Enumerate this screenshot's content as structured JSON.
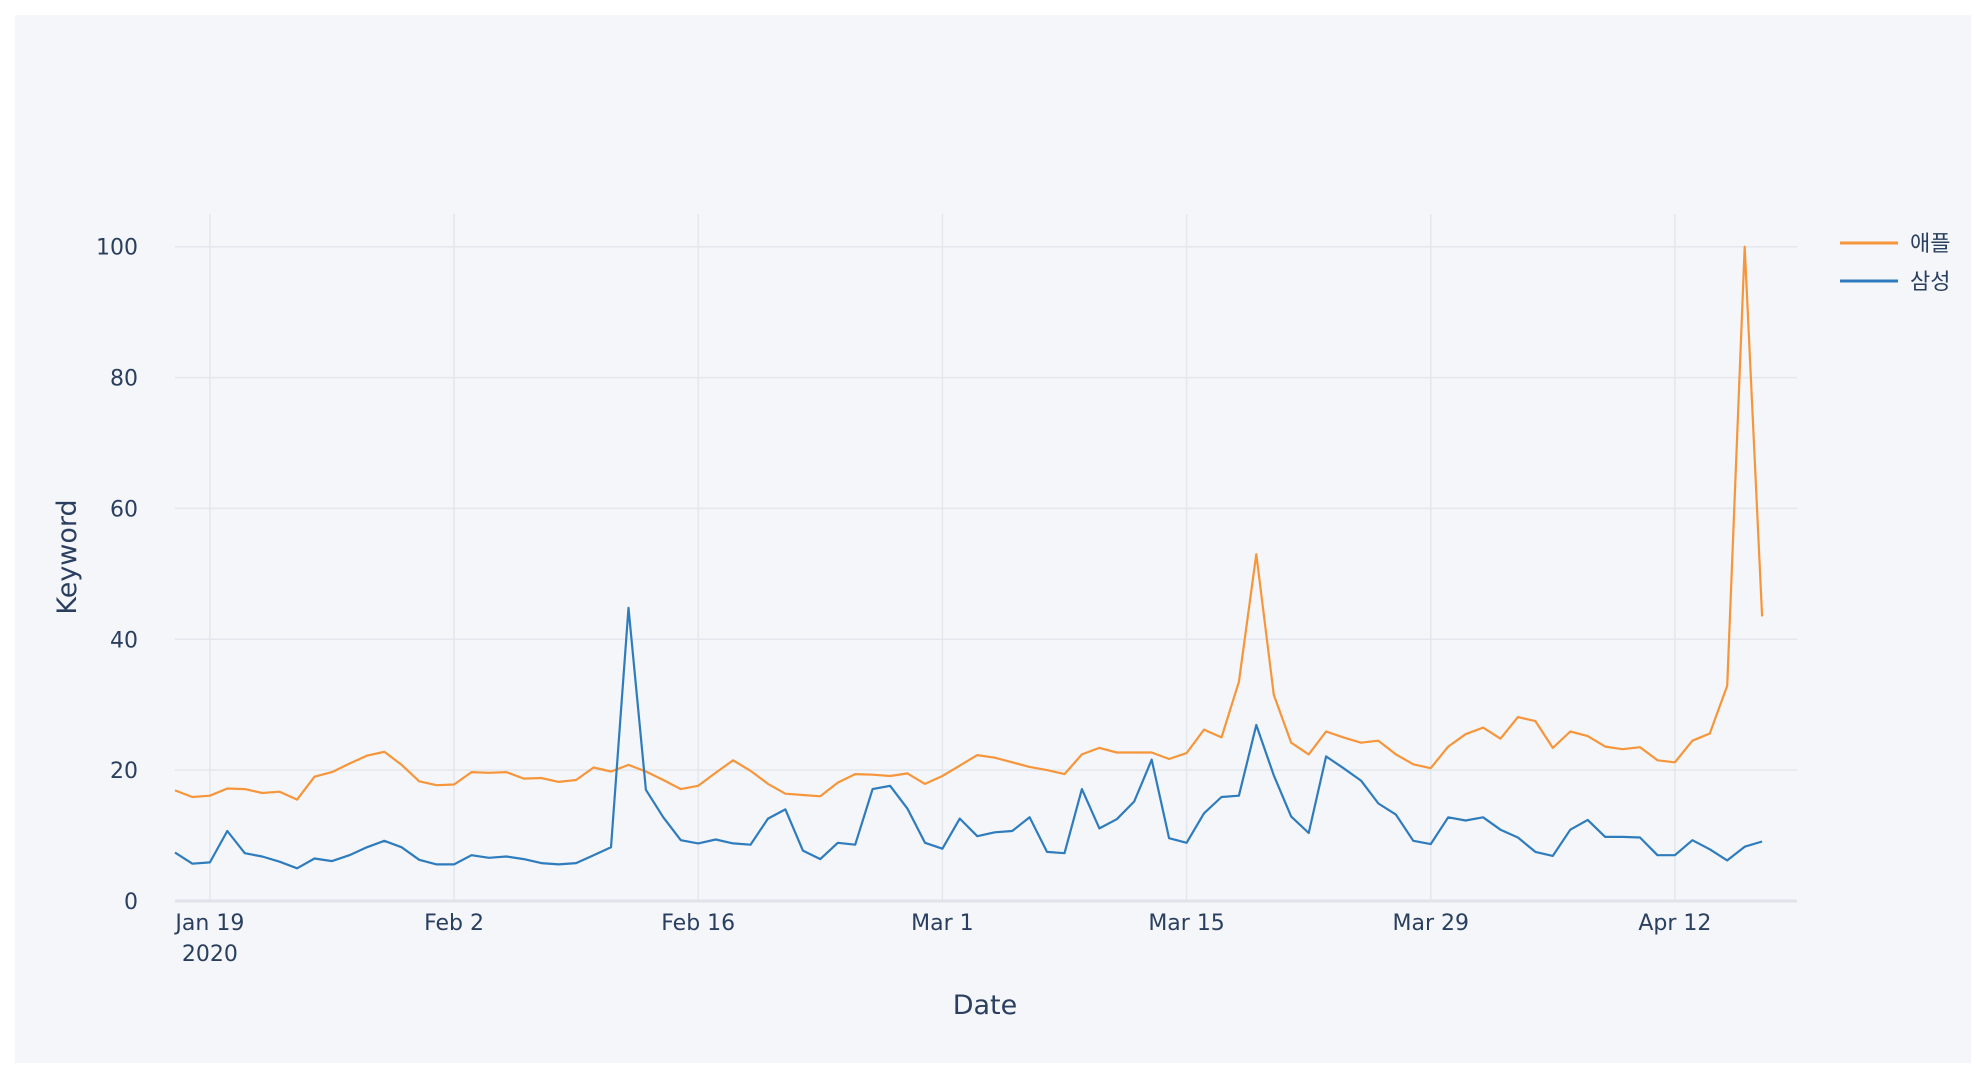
{
  "chart_data": {
    "type": "line",
    "title": "",
    "xlabel": "Date",
    "ylabel": "Keyword",
    "x_start": "2020-01-17",
    "x_end": "2020-04-19",
    "x_range": [
      "2020-01-17",
      "2020-04-19"
    ],
    "xticks": [
      {
        "date": "2020-01-19",
        "label": "Jan 19",
        "sublabel": "2020"
      },
      {
        "date": "2020-02-02",
        "label": "Feb 2",
        "sublabel": ""
      },
      {
        "date": "2020-02-16",
        "label": "Feb 16",
        "sublabel": ""
      },
      {
        "date": "2020-03-01",
        "label": "Mar 1",
        "sublabel": ""
      },
      {
        "date": "2020-03-15",
        "label": "Mar 15",
        "sublabel": ""
      },
      {
        "date": "2020-03-29",
        "label": "Mar 29",
        "sublabel": ""
      },
      {
        "date": "2020-04-12",
        "label": "Apr 12",
        "sublabel": ""
      }
    ],
    "ylim": [
      0,
      105
    ],
    "yticks": [
      0,
      20,
      40,
      60,
      80,
      100
    ],
    "grid": true,
    "legend_position": "top-right",
    "colors": {
      "paper": "#f4f6f9",
      "grid": "#e3e7ee",
      "zeroline": "#dfe3ea",
      "apple": "#f7953a",
      "samsung": "#2e7cbd"
    },
    "series": [
      {
        "name": "애플",
        "color": "#f7953a",
        "values": [
          16.9,
          15.9,
          16.1,
          17.2,
          17.1,
          16.5,
          16.7,
          15.5,
          19.0,
          19.7,
          21.0,
          22.2,
          22.8,
          20.8,
          18.3,
          17.7,
          17.8,
          19.7,
          19.6,
          19.7,
          18.7,
          18.8,
          18.2,
          18.5,
          20.4,
          19.8,
          20.8,
          19.8,
          18.5,
          17.1,
          17.6,
          19.6,
          21.5,
          19.9,
          17.9,
          16.4,
          16.2,
          16.0,
          18.1,
          19.4,
          19.3,
          19.1,
          19.5,
          17.9,
          19.1,
          20.7,
          22.3,
          21.9,
          21.2,
          20.5,
          20.0,
          19.4,
          22.4,
          23.4,
          22.7,
          22.7,
          22.7,
          21.7,
          22.6,
          26.2,
          25.0,
          33.5,
          53.0,
          31.5,
          24.2,
          22.4,
          25.9,
          25.0,
          24.2,
          24.5,
          22.4,
          20.9,
          20.3,
          23.6,
          25.5,
          26.5,
          24.8,
          28.1,
          27.5,
          23.4,
          25.9,
          25.2,
          23.6,
          23.2,
          23.5,
          21.5,
          21.2,
          24.5,
          25.6,
          32.9,
          100.0,
          43.5
        ]
      },
      {
        "name": "삼성",
        "color": "#2e7cbd",
        "values": [
          7.4,
          5.7,
          5.9,
          10.7,
          7.3,
          6.8,
          6.0,
          5.0,
          6.5,
          6.1,
          7.0,
          8.2,
          9.2,
          8.2,
          6.3,
          5.6,
          5.6,
          7.0,
          6.6,
          6.8,
          6.4,
          5.8,
          5.6,
          5.8,
          7.0,
          8.2,
          44.8,
          17.0,
          12.8,
          9.3,
          8.8,
          9.4,
          8.8,
          8.6,
          12.6,
          14.0,
          7.7,
          6.4,
          8.9,
          8.6,
          17.1,
          17.6,
          14.1,
          8.9,
          8.0,
          12.6,
          9.9,
          10.5,
          10.7,
          12.8,
          7.5,
          7.3,
          17.1,
          11.1,
          12.5,
          15.2,
          21.6,
          9.6,
          8.9,
          13.4,
          15.9,
          16.1,
          26.9,
          19.2,
          12.9,
          10.4,
          22.1,
          20.3,
          18.4,
          14.9,
          13.2,
          9.2,
          8.7,
          12.8,
          12.3,
          12.8,
          10.9,
          9.7,
          7.5,
          6.9,
          10.9,
          12.4,
          9.8,
          9.8,
          9.7,
          7.0,
          7.0,
          9.3,
          7.9,
          6.2,
          8.3,
          9.1
        ]
      }
    ]
  }
}
